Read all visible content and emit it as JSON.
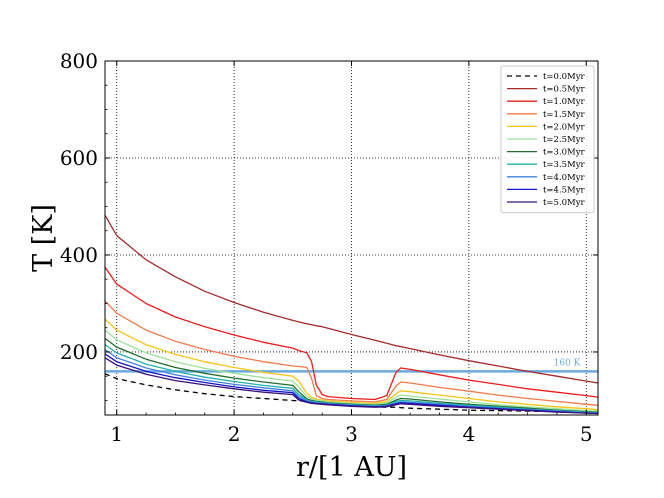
{
  "chart_data": {
    "type": "line",
    "title": "",
    "xlabel": "r/[1 AU]",
    "ylabel": "T [K]",
    "xlim": [
      0.9,
      5.1
    ],
    "ylim": [
      70,
      800
    ],
    "xticks": [
      1,
      2,
      3,
      4,
      5
    ],
    "xtick_labels": [
      "1",
      "2",
      "3",
      "4",
      "5"
    ],
    "yticks": [
      200,
      400,
      600,
      800
    ],
    "ytick_labels": [
      "200",
      "400",
      "600",
      "800"
    ],
    "grid": "dotted",
    "legend_placement": "top-right",
    "annotation": {
      "text": "160 K",
      "x": 4.95,
      "y": 160
    },
    "hline": {
      "y": 160,
      "color": "#6aa9e0"
    },
    "x": [
      0.9,
      1.0,
      1.25,
      1.5,
      1.75,
      2.0,
      2.25,
      2.5,
      2.55,
      2.62,
      2.66,
      2.7,
      2.75,
      2.8,
      3.0,
      3.2,
      3.3,
      3.38,
      3.42,
      3.5,
      3.75,
      4.0,
      4.25,
      4.5,
      4.75,
      5.0,
      5.1
    ],
    "series": [
      {
        "name": "t=0.0Myr",
        "color": "#000000",
        "dash": "5,4",
        "values": [
          155,
          145,
          132,
          122,
          114,
          108,
          104,
          100,
          99,
          98,
          96,
          95,
          94,
          93,
          90,
          87,
          86,
          86,
          85,
          84,
          82,
          80,
          79,
          78,
          77,
          76,
          75
        ]
      },
      {
        "name": "t=0.5Myr",
        "color": "#a52a2a",
        "values": [
          482,
          440,
          390,
          355,
          325,
          302,
          282,
          265,
          262,
          258,
          256,
          254,
          252,
          249,
          236,
          224,
          218,
          213,
          211,
          207,
          194,
          182,
          171,
          160,
          150,
          140,
          136
        ]
      },
      {
        "name": "t=1.0Myr",
        "color": "#ee1c1c",
        "values": [
          375,
          340,
          300,
          272,
          252,
          235,
          220,
          208,
          203,
          198,
          180,
          132,
          112,
          108,
          104,
          102,
          110,
          158,
          167,
          164,
          153,
          142,
          133,
          124,
          117,
          110,
          107
        ]
      },
      {
        "name": "t=1.5Myr",
        "color": "#f47a4c",
        "values": [
          305,
          280,
          245,
          222,
          205,
          191,
          180,
          171,
          170,
          168,
          145,
          110,
          104,
          102,
          99,
          97,
          102,
          130,
          138,
          136,
          127,
          119,
          111,
          104,
          98,
          92,
          90
        ]
      },
      {
        "name": "t=2.0Myr",
        "color": "#f5c518",
        "values": [
          268,
          245,
          215,
          195,
          180,
          168,
          158,
          150,
          140,
          115,
          106,
          103,
          101,
          99,
          96,
          94,
          98,
          114,
          120,
          118,
          111,
          104,
          97,
          92,
          87,
          83,
          81
        ]
      },
      {
        "name": "t=2.5Myr",
        "color": "#9ee39a",
        "values": [
          245,
          225,
          198,
          180,
          166,
          156,
          147,
          140,
          128,
          108,
          103,
          101,
          99,
          97,
          94,
          92,
          95,
          107,
          111,
          109,
          103,
          97,
          91,
          87,
          83,
          79,
          78
        ]
      },
      {
        "name": "t=3.0Myr",
        "color": "#1f6e2e",
        "values": [
          228,
          210,
          185,
          168,
          156,
          146,
          138,
          131,
          118,
          103,
          100,
          98,
          97,
          95,
          92,
          90,
          92,
          101,
          104,
          103,
          97,
          92,
          88,
          84,
          80,
          77,
          76
        ]
      },
      {
        "name": "t=3.5Myr",
        "color": "#20b2aa",
        "values": [
          215,
          198,
          175,
          160,
          148,
          139,
          131,
          125,
          112,
          101,
          98,
          97,
          96,
          94,
          91,
          89,
          90,
          98,
          100,
          99,
          94,
          90,
          86,
          82,
          79,
          76,
          75
        ]
      },
      {
        "name": "t=4.0Myr",
        "color": "#4682e6",
        "values": [
          205,
          188,
          167,
          153,
          142,
          133,
          126,
          120,
          108,
          99,
          97,
          95,
          94,
          93,
          90,
          88,
          89,
          95,
          97,
          96,
          92,
          88,
          84,
          81,
          78,
          75,
          74
        ]
      },
      {
        "name": "t=4.5Myr",
        "color": "#1515c8",
        "values": [
          196,
          180,
          160,
          147,
          137,
          128,
          121,
          116,
          104,
          97,
          95,
          94,
          93,
          92,
          89,
          87,
          88,
          93,
          95,
          94,
          90,
          86,
          83,
          80,
          77,
          74,
          73
        ]
      },
      {
        "name": "t=5.0Myr",
        "color": "#3a1278",
        "values": [
          188,
          173,
          154,
          141,
          132,
          124,
          117,
          112,
          101,
          96,
          94,
          93,
          92,
          91,
          88,
          86,
          87,
          91,
          93,
          92,
          88,
          85,
          82,
          79,
          76,
          74,
          73
        ]
      }
    ]
  }
}
